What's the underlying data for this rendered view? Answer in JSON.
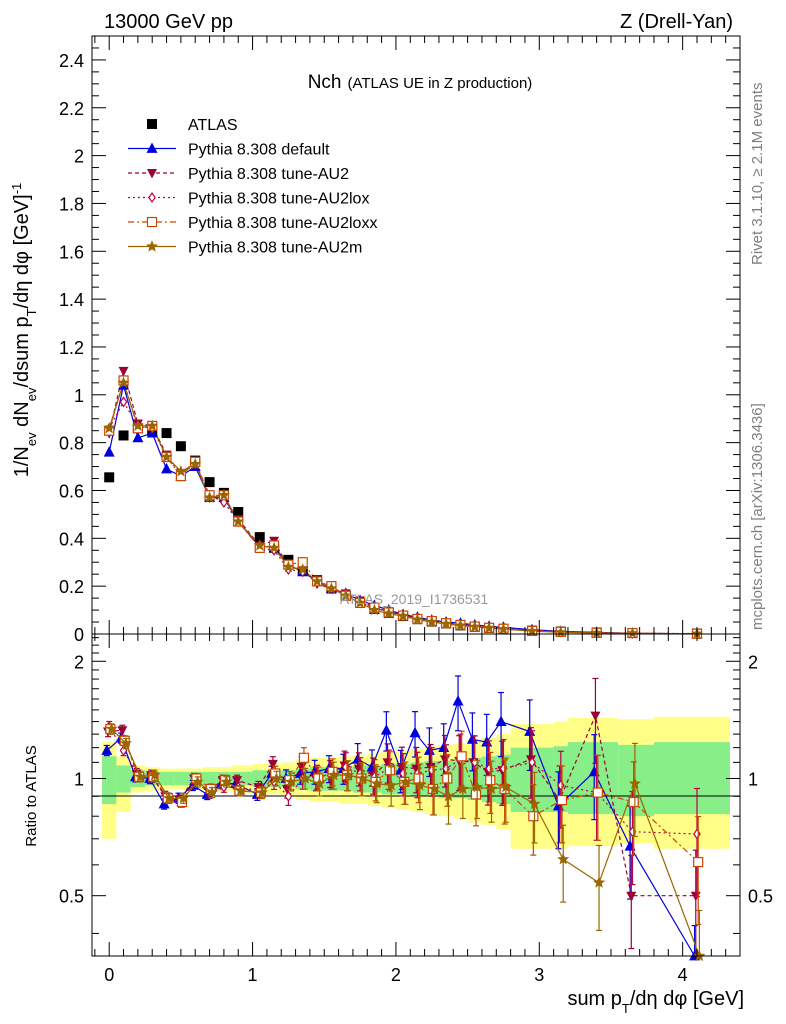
{
  "header": {
    "left": "13000 GeV pp",
    "right": "Z (Drell-Yan)"
  },
  "side_labels": {
    "rivet": "Rivet 3.1.10, ≥ 2.1M events",
    "mcplots": "mcplots.cern.ch [arXiv:1306.3436]"
  },
  "watermark": "ATLAS_2019_I1736531",
  "chart_data": [
    {
      "type": "line",
      "panel": "main",
      "title_main": "Nch",
      "title_sub": "(ATLAS UE in Z production)",
      "ylabel": "1/N_ev dN_ev/dsum p_T/dη dφ [GeV]^-1",
      "xlabel": "sum p_T/dη dφ [GeV]",
      "xlim": [
        -0.12,
        4.4
      ],
      "ylim": [
        0,
        2.5
      ],
      "x_ticks": [
        "0",
        "1",
        "2",
        "3",
        "4"
      ],
      "y_ticks": [
        "0",
        "0.2",
        "0.4",
        "0.6",
        "0.8",
        "1",
        "1.2",
        "1.4",
        "1.6",
        "1.8",
        "2",
        "2.2",
        "2.4"
      ],
      "legend_position": "top-left",
      "x": [
        0.0,
        0.1,
        0.2,
        0.3,
        0.4,
        0.5,
        0.6,
        0.7,
        0.8,
        0.9,
        1.05,
        1.15,
        1.25,
        1.35,
        1.45,
        1.55,
        1.65,
        1.75,
        1.85,
        1.95,
        2.05,
        2.15,
        2.25,
        2.35,
        2.45,
        2.55,
        2.65,
        2.75,
        2.95,
        3.15,
        3.4,
        3.65,
        4.1
      ],
      "series": [
        {
          "name": "ATLAS",
          "color": "#000000",
          "marker": "square",
          "values": [
            0.655,
            0.83,
            0.86,
            0.85,
            0.84,
            0.785,
            0.725,
            0.635,
            0.59,
            0.51,
            0.405,
            0.36,
            0.31,
            0.265,
            0.225,
            0.19,
            0.16,
            0.13,
            0.105,
            0.088,
            0.075,
            0.062,
            0.052,
            0.044,
            0.036,
            0.03,
            0.025,
            0.021,
            0.014,
            0.01,
            0.006,
            0.004,
            0.002
          ]
        },
        {
          "name": "Pythia 8.308 default",
          "color": "#0000dd",
          "marker": "triangle-up",
          "dash": "",
          "values": [
            0.76,
            1.04,
            0.82,
            0.84,
            0.69,
            0.66,
            0.7,
            0.57,
            0.57,
            0.47,
            0.365,
            0.365,
            0.29,
            0.26,
            0.22,
            0.19,
            0.17,
            0.14,
            0.12,
            0.1,
            0.082,
            0.07,
            0.058,
            0.05,
            0.045,
            0.038,
            0.032,
            0.028,
            0.018,
            0.011,
            0.007,
            0.003,
            0.001
          ]
        },
        {
          "name": "Pythia 8.308 tune-AU2",
          "color": "#990033",
          "marker": "triangle-down",
          "dash": "4,3",
          "values": [
            0.84,
            1.1,
            0.88,
            0.87,
            0.75,
            0.67,
            0.72,
            0.57,
            0.57,
            0.48,
            0.37,
            0.39,
            0.28,
            0.27,
            0.21,
            0.19,
            0.17,
            0.14,
            0.11,
            0.095,
            0.08,
            0.065,
            0.055,
            0.046,
            0.04,
            0.034,
            0.027,
            0.023,
            0.015,
            0.01,
            0.006,
            0.003,
            0.001
          ]
        },
        {
          "name": "Pythia 8.308 tune-AU2lox",
          "color": "#bb0044",
          "marker": "diamond-open",
          "dash": "2,3",
          "values": [
            0.86,
            0.97,
            0.87,
            0.86,
            0.74,
            0.67,
            0.71,
            0.58,
            0.55,
            0.47,
            0.36,
            0.35,
            0.27,
            0.26,
            0.22,
            0.19,
            0.17,
            0.13,
            0.11,
            0.09,
            0.078,
            0.064,
            0.054,
            0.046,
            0.039,
            0.033,
            0.027,
            0.022,
            0.015,
            0.009,
            0.006,
            0.003,
            0.002
          ]
        },
        {
          "name": "Pythia 8.308 tune-AU2loxx",
          "color": "#cc4400",
          "marker": "square-open",
          "dash": "6,3,2,3",
          "values": [
            0.85,
            1.06,
            0.86,
            0.87,
            0.74,
            0.66,
            0.72,
            0.58,
            0.58,
            0.47,
            0.36,
            0.37,
            0.29,
            0.3,
            0.22,
            0.2,
            0.16,
            0.13,
            0.11,
            0.09,
            0.077,
            0.063,
            0.054,
            0.045,
            0.038,
            0.031,
            0.026,
            0.022,
            0.013,
            0.009,
            0.005,
            0.004,
            0.001
          ]
        },
        {
          "name": "Pythia 8.308 tune-AU2m",
          "color": "#996600",
          "marker": "star",
          "dash": "",
          "values": [
            0.86,
            1.05,
            0.87,
            0.87,
            0.74,
            0.68,
            0.71,
            0.57,
            0.58,
            0.47,
            0.37,
            0.36,
            0.28,
            0.27,
            0.22,
            0.19,
            0.16,
            0.13,
            0.1,
            0.085,
            0.075,
            0.06,
            0.05,
            0.042,
            0.035,
            0.03,
            0.025,
            0.02,
            0.012,
            0.007,
            0.004,
            0.003,
            0.001
          ]
        }
      ]
    },
    {
      "type": "line",
      "panel": "ratio",
      "ylabel": "Ratio to ATLAS",
      "xlim": [
        -0.12,
        4.4
      ],
      "ylim": [
        0.35,
        2.35
      ],
      "y_ticks": [
        "0.5",
        "1",
        "2"
      ],
      "bands": {
        "yellow_color": "#ffff88",
        "green_color": "#88ee88",
        "bins": [
          {
            "x0": -0.05,
            "x1": 0.05,
            "yellow": [
              0.7,
              1.24
            ],
            "green": [
              0.86,
              1.14
            ]
          },
          {
            "x0": 0.05,
            "x1": 0.15,
            "yellow": [
              0.82,
              1.14
            ],
            "green": [
              0.92,
              1.08
            ]
          },
          {
            "x0": 0.15,
            "x1": 0.25,
            "yellow": [
              0.92,
              1.08
            ],
            "green": [
              0.95,
              1.05
            ]
          },
          {
            "x0": 0.25,
            "x1": 0.35,
            "yellow": [
              0.93,
              1.07
            ],
            "green": [
              0.96,
              1.04
            ]
          },
          {
            "x0": 0.35,
            "x1": 0.45,
            "yellow": [
              0.94,
              1.06
            ],
            "green": [
              0.96,
              1.04
            ]
          },
          {
            "x0": 0.45,
            "x1": 0.55,
            "yellow": [
              0.94,
              1.06
            ],
            "green": [
              0.96,
              1.04
            ]
          },
          {
            "x0": 0.55,
            "x1": 0.65,
            "yellow": [
              0.94,
              1.06
            ],
            "green": [
              0.96,
              1.04
            ]
          },
          {
            "x0": 0.65,
            "x1": 0.75,
            "yellow": [
              0.93,
              1.07
            ],
            "green": [
              0.96,
              1.04
            ]
          },
          {
            "x0": 0.75,
            "x1": 0.85,
            "yellow": [
              0.93,
              1.07
            ],
            "green": [
              0.96,
              1.04
            ]
          },
          {
            "x0": 0.85,
            "x1": 1.0,
            "yellow": [
              0.92,
              1.08
            ],
            "green": [
              0.96,
              1.04
            ]
          },
          {
            "x0": 1.0,
            "x1": 1.1,
            "yellow": [
              0.91,
              1.09
            ],
            "green": [
              0.95,
              1.05
            ]
          },
          {
            "x0": 1.1,
            "x1": 1.2,
            "yellow": [
              0.91,
              1.09
            ],
            "green": [
              0.95,
              1.05
            ]
          },
          {
            "x0": 1.2,
            "x1": 1.3,
            "yellow": [
              0.9,
              1.1
            ],
            "green": [
              0.95,
              1.05
            ]
          },
          {
            "x0": 1.3,
            "x1": 1.4,
            "yellow": [
              0.88,
              1.12
            ],
            "green": [
              0.94,
              1.06
            ]
          },
          {
            "x0": 1.4,
            "x1": 1.5,
            "yellow": [
              0.87,
              1.13
            ],
            "green": [
              0.93,
              1.07
            ]
          },
          {
            "x0": 1.5,
            "x1": 1.6,
            "yellow": [
              0.87,
              1.13
            ],
            "green": [
              0.93,
              1.07
            ]
          },
          {
            "x0": 1.6,
            "x1": 1.7,
            "yellow": [
              0.86,
              1.14
            ],
            "green": [
              0.93,
              1.07
            ]
          },
          {
            "x0": 1.7,
            "x1": 1.8,
            "yellow": [
              0.86,
              1.15
            ],
            "green": [
              0.92,
              1.08
            ]
          },
          {
            "x0": 1.8,
            "x1": 1.9,
            "yellow": [
              0.85,
              1.16
            ],
            "green": [
              0.92,
              1.08
            ]
          },
          {
            "x0": 1.9,
            "x1": 2.0,
            "yellow": [
              0.84,
              1.17
            ],
            "green": [
              0.91,
              1.09
            ]
          },
          {
            "x0": 2.0,
            "x1": 2.1,
            "yellow": [
              0.83,
              1.18
            ],
            "green": [
              0.91,
              1.09
            ]
          },
          {
            "x0": 2.1,
            "x1": 2.2,
            "yellow": [
              0.82,
              1.19
            ],
            "green": [
              0.9,
              1.1
            ]
          },
          {
            "x0": 2.2,
            "x1": 2.3,
            "yellow": [
              0.81,
              1.21
            ],
            "green": [
              0.9,
              1.11
            ]
          },
          {
            "x0": 2.3,
            "x1": 2.4,
            "yellow": [
              0.8,
              1.22
            ],
            "green": [
              0.89,
              1.11
            ]
          },
          {
            "x0": 2.4,
            "x1": 2.5,
            "yellow": [
              0.79,
              1.23
            ],
            "green": [
              0.89,
              1.12
            ]
          },
          {
            "x0": 2.5,
            "x1": 2.6,
            "yellow": [
              0.77,
              1.26
            ],
            "green": [
              0.88,
              1.13
            ]
          },
          {
            "x0": 2.6,
            "x1": 2.7,
            "yellow": [
              0.76,
              1.27
            ],
            "green": [
              0.87,
              1.14
            ]
          },
          {
            "x0": 2.7,
            "x1": 2.8,
            "yellow": [
              0.74,
              1.3
            ],
            "green": [
              0.86,
              1.15
            ]
          },
          {
            "x0": 2.8,
            "x1": 3.1,
            "yellow": [
              0.66,
              1.38
            ],
            "green": [
              0.82,
              1.2
            ]
          },
          {
            "x0": 3.1,
            "x1": 3.2,
            "yellow": [
              0.66,
              1.4
            ],
            "green": [
              0.82,
              1.21
            ]
          },
          {
            "x0": 3.2,
            "x1": 3.55,
            "yellow": [
              0.67,
              1.43
            ],
            "green": [
              0.81,
              1.24
            ]
          },
          {
            "x0": 3.55,
            "x1": 3.8,
            "yellow": [
              0.68,
              1.42
            ],
            "green": [
              0.8,
              1.22
            ]
          },
          {
            "x0": 3.8,
            "x1": 4.33,
            "yellow": [
              0.66,
              1.44
            ],
            "green": [
              0.81,
              1.24
            ]
          }
        ]
      },
      "series": [
        {
          "name": "Pythia 8.308 default",
          "values": [
            1.18,
            1.27,
            1.01,
            1.0,
            0.86,
            0.89,
            0.96,
            0.91,
            0.97,
            0.97,
            0.91,
            1.03,
            1.0,
            1.03,
            1.04,
            1.06,
            1.06,
            1.12,
            1.07,
            1.33,
            1.05,
            1.31,
            1.18,
            1.2,
            1.58,
            1.26,
            1.24,
            1.4,
            1.32,
            0.85,
            1.04,
            0.67,
            0.32
          ]
        },
        {
          "name": "Pythia 8.308 tune-AU2",
          "values": [
            1.32,
            1.33,
            1.03,
            1.02,
            0.9,
            0.88,
            1.0,
            0.93,
            0.99,
            0.99,
            0.95,
            1.09,
            0.94,
            1.07,
            1.0,
            1.03,
            1.08,
            1.06,
            1.02,
            1.1,
            1.07,
            1.06,
            1.07,
            1.12,
            1.11,
            1.1,
            1.04,
            1.05,
            1.12,
            0.88,
            1.45,
            0.5,
            0.5
          ]
        },
        {
          "name": "Pythia 8.308 tune-AU2lox",
          "values": [
            1.36,
            1.18,
            1.02,
            1.01,
            0.89,
            0.87,
            0.98,
            0.92,
            0.95,
            0.95,
            0.93,
            0.98,
            0.9,
            1.0,
            1.01,
            1.02,
            1.07,
            1.03,
            1.01,
            1.06,
            1.03,
            1.03,
            1.05,
            1.06,
            1.12,
            1.1,
            1.06,
            1.06,
            1.1,
            0.96,
            0.92,
            0.73,
            0.72
          ]
        },
        {
          "name": "Pythia 8.308 tune-AU2loxx",
          "values": [
            1.34,
            1.25,
            1.01,
            1.01,
            0.89,
            0.87,
            1.0,
            0.94,
            0.99,
            0.93,
            0.92,
            1.03,
            0.99,
            1.13,
            1.0,
            1.04,
            1.02,
            1.0,
            0.98,
            1.05,
            0.98,
            1.0,
            0.94,
            1.0,
            1.14,
            0.91,
            0.99,
            0.94,
            0.8,
            0.88,
            0.92,
            0.87,
            0.61
          ]
        },
        {
          "name": "Pythia 8.308 tune-AU2m",
          "values": [
            1.34,
            1.23,
            1.01,
            1.02,
            0.89,
            0.89,
            0.98,
            0.92,
            0.98,
            0.93,
            0.92,
            1.0,
            0.98,
            1.0,
            0.97,
            1.02,
            1.02,
            1.0,
            0.97,
            0.96,
            0.98,
            0.96,
            0.94,
            0.9,
            0.94,
            0.95,
            0.94,
            0.95,
            0.86,
            0.62,
            0.54,
            0.97,
            0.35
          ]
        }
      ]
    }
  ]
}
